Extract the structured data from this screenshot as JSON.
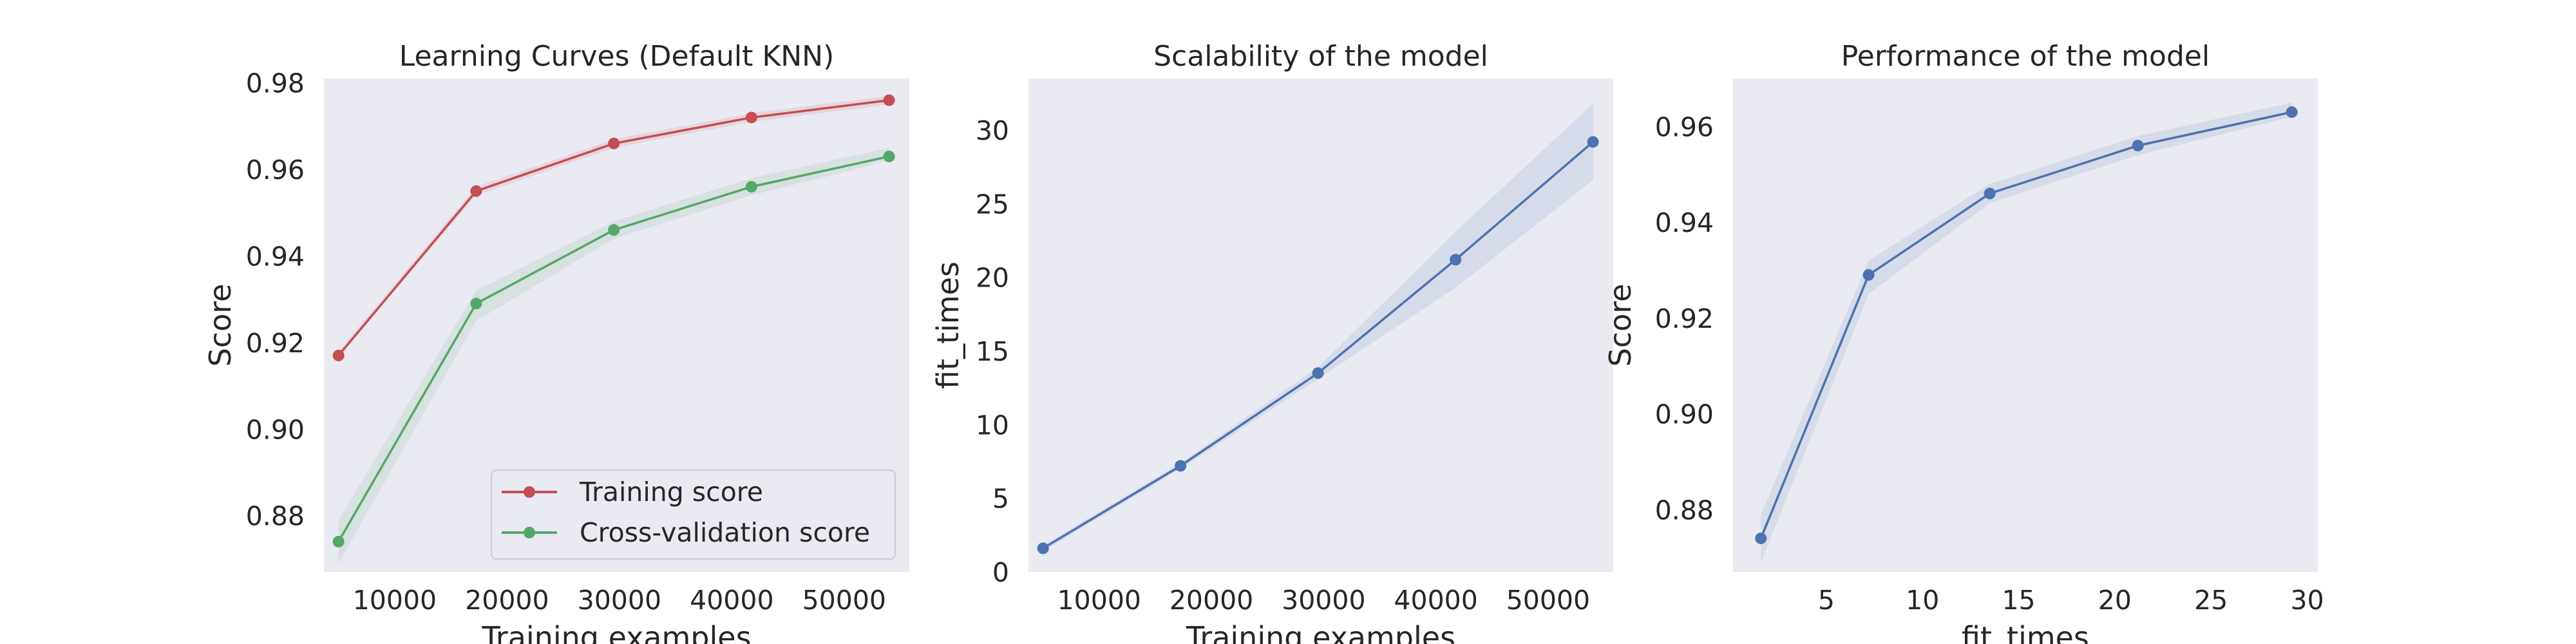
{
  "colors": {
    "background": "#eaeaf2",
    "training": "#c44e52",
    "cv": "#55a868",
    "blue": "#4c72b0"
  },
  "chart_data": [
    {
      "type": "line",
      "title": "Learning Curves (Default KNN)",
      "xlabel": "Training examples",
      "ylabel": "Score",
      "xlim": [
        3700,
        55800
      ],
      "ylim": [
        0.867,
        0.981
      ],
      "xticks": [
        "10000",
        "20000",
        "30000",
        "40000",
        "50000"
      ],
      "yticks": [
        "0.88",
        "0.90",
        "0.92",
        "0.94",
        "0.96",
        "0.98"
      ],
      "x": [
        5000,
        17250,
        29500,
        41750,
        54000
      ],
      "legend_position": "lower-right",
      "series": [
        {
          "name": "Training score",
          "color": "#c44e52",
          "values": [
            0.917,
            0.955,
            0.966,
            0.972,
            0.976
          ],
          "band_low": [
            0.917,
            0.954,
            0.965,
            0.971,
            0.975
          ],
          "band_high": [
            0.918,
            0.956,
            0.967,
            0.973,
            0.977
          ]
        },
        {
          "name": "Cross-validation score",
          "color": "#55a868",
          "values": [
            0.874,
            0.929,
            0.946,
            0.956,
            0.963
          ],
          "band_low": [
            0.869,
            0.925,
            0.944,
            0.954,
            0.962
          ],
          "band_high": [
            0.879,
            0.932,
            0.948,
            0.958,
            0.965
          ]
        }
      ]
    },
    {
      "type": "line",
      "title": "Scalability of the model",
      "xlabel": "Training examples",
      "ylabel": "fit_times",
      "xlim": [
        3700,
        55800
      ],
      "ylim": [
        0,
        33.5
      ],
      "xticks": [
        "10000",
        "20000",
        "30000",
        "40000",
        "50000"
      ],
      "yticks": [
        "0",
        "5",
        "10",
        "15",
        "20",
        "25",
        "30"
      ],
      "x": [
        5000,
        17250,
        29500,
        41750,
        54000
      ],
      "series": [
        {
          "color": "#4c72b0",
          "values": [
            1.6,
            7.2,
            13.5,
            21.2,
            29.2
          ],
          "band_low": [
            1.4,
            7.0,
            13.1,
            19.3,
            26.6
          ],
          "band_high": [
            1.8,
            7.4,
            13.9,
            23.1,
            31.8
          ]
        }
      ]
    },
    {
      "type": "line",
      "title": "Performance of the model",
      "xlabel": "fit_times",
      "ylabel": "Score",
      "xlim": [
        0.15,
        30.55
      ],
      "ylim": [
        0.867,
        0.97
      ],
      "xticks": [
        "5",
        "10",
        "15",
        "20",
        "25",
        "30"
      ],
      "yticks": [
        "0.88",
        "0.90",
        "0.92",
        "0.94",
        "0.96"
      ],
      "series": [
        {
          "color": "#4c72b0",
          "x": [
            1.6,
            7.2,
            13.5,
            21.2,
            29.2
          ],
          "values": [
            0.874,
            0.929,
            0.946,
            0.956,
            0.963
          ],
          "band_low": [
            0.869,
            0.925,
            0.944,
            0.954,
            0.962
          ],
          "band_high": [
            0.879,
            0.932,
            0.948,
            0.958,
            0.965
          ]
        }
      ]
    }
  ]
}
